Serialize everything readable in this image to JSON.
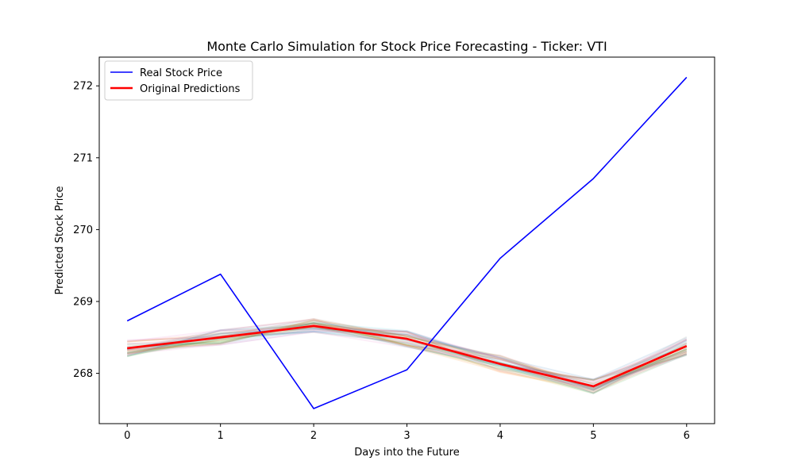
{
  "chart_data": {
    "type": "line",
    "title": "Monte Carlo Simulation for Stock Price Forecasting - Ticker: VTI",
    "xlabel": "Days into the Future",
    "ylabel": "Predicted Stock Price",
    "x": [
      0,
      1,
      2,
      3,
      4,
      5,
      6
    ],
    "xticks": [
      "0",
      "1",
      "2",
      "3",
      "4",
      "5",
      "6"
    ],
    "yticks": [
      "268",
      "269",
      "270",
      "271",
      "272"
    ],
    "xlim": [
      -0.3,
      6.3
    ],
    "ylim": [
      267.3,
      272.4
    ],
    "grid": false,
    "legend_position": "top-left",
    "series": [
      {
        "name": "Real Stock Price",
        "color": "#0000ff",
        "values": [
          268.73,
          269.38,
          267.51,
          268.05,
          269.6,
          270.71,
          272.12
        ]
      },
      {
        "name": "Original Predictions",
        "color": "#ff0000",
        "values": [
          268.35,
          268.5,
          268.66,
          268.48,
          268.13,
          267.82,
          268.38
        ]
      }
    ],
    "simulations": {
      "count": 40,
      "opacity": 0.12,
      "spread": [
        0.12,
        0.11,
        0.1,
        0.12,
        0.12,
        0.1,
        0.13
      ]
    }
  },
  "palette": [
    "#1f77b4",
    "#ff7f0e",
    "#2ca02c",
    "#d62728",
    "#9467bd",
    "#8c564b",
    "#e377c2",
    "#7f7f7f",
    "#bcbd22",
    "#17becf"
  ]
}
